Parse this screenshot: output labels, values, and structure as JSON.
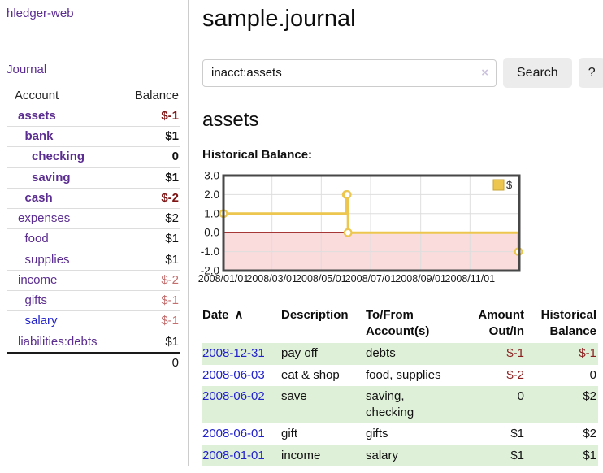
{
  "app": {
    "brand": "hledger-web",
    "nav_journal": "Journal"
  },
  "sidebar": {
    "col_account": "Account",
    "col_balance": "Balance",
    "accounts": [
      {
        "name": "assets",
        "depth": 0,
        "balance": "$-1",
        "bold": true,
        "neg": true
      },
      {
        "name": "bank",
        "depth": 1,
        "balance": "$1",
        "bold": true,
        "neg": false
      },
      {
        "name": "checking",
        "depth": 2,
        "balance": "0",
        "bold": true,
        "neg": false
      },
      {
        "name": "saving",
        "depth": 2,
        "balance": "$1",
        "bold": true,
        "neg": false
      },
      {
        "name": "cash",
        "depth": 1,
        "balance": "$-2",
        "bold": true,
        "neg": true
      },
      {
        "name": "expenses",
        "depth": 0,
        "balance": "$2",
        "bold": false,
        "neg": false
      },
      {
        "name": "food",
        "depth": 1,
        "balance": "$1",
        "bold": false,
        "neg": false
      },
      {
        "name": "supplies",
        "depth": 1,
        "balance": "$1",
        "bold": false,
        "neg": false
      },
      {
        "name": "income",
        "depth": 0,
        "balance": "$-2",
        "bold": false,
        "neg": true
      },
      {
        "name": "gifts",
        "depth": 1,
        "balance": "$-1",
        "bold": false,
        "neg": true
      },
      {
        "name": "salary",
        "depth": 1,
        "balance": "$-1",
        "bold": false,
        "neg": true,
        "blue": true
      },
      {
        "name": "liabilities:debts",
        "depth": 0,
        "balance": "$1",
        "bold": false,
        "neg": false
      }
    ],
    "total": "0"
  },
  "header": {
    "title": "sample.journal"
  },
  "search": {
    "value": "inacct:assets",
    "clear_icon": "×",
    "button": "Search",
    "help_button": "?"
  },
  "account_page": {
    "heading": "assets",
    "chart_label": "Historical Balance:"
  },
  "chart_data": {
    "type": "line",
    "title": "Historical Balance:",
    "style": "step-after",
    "series": [
      {
        "name": "$",
        "color": "#ecc64f",
        "points": [
          {
            "date": "2008-01-01",
            "value": 1
          },
          {
            "date": "2008-06-01",
            "value": 2
          },
          {
            "date": "2008-06-02",
            "value": 2
          },
          {
            "date": "2008-06-03",
            "value": 0
          },
          {
            "date": "2008-12-31",
            "value": -1
          }
        ]
      }
    ],
    "x_range": [
      "2008-01-01",
      "2009-01-01"
    ],
    "x_ticks": [
      "2008/01/01",
      "2008/03/01",
      "2008/05/01",
      "2008/07/01",
      "2008/09/01",
      "2008/11/01"
    ],
    "y_ticks": [
      3.0,
      2.0,
      1.0,
      0.0,
      -1.0,
      -2.0
    ],
    "ylim": [
      -2,
      3
    ],
    "grid": true,
    "negative_fill": "#fadcdc",
    "zero_line_color": "#8e0000",
    "legend": {
      "label": "$",
      "position": "top-right"
    }
  },
  "register": {
    "sort_icon": "∧",
    "columns": [
      "Date",
      "Description",
      "To/From Account(s)",
      "Amount Out/In",
      "Historical Balance"
    ],
    "rows": [
      {
        "date": "2008-12-31",
        "description": "pay off",
        "accounts": "debts",
        "amount": "$-1",
        "balance": "$-1",
        "amount_neg": true,
        "balance_neg": true
      },
      {
        "date": "2008-06-03",
        "description": "eat & shop",
        "accounts": "food, supplies",
        "amount": "$-2",
        "balance": "0",
        "amount_neg": true,
        "balance_neg": false
      },
      {
        "date": "2008-06-02",
        "description": "save",
        "accounts": "saving, checking",
        "amount": "0",
        "balance": "$2",
        "amount_neg": false,
        "balance_neg": false
      },
      {
        "date": "2008-06-01",
        "description": "gift",
        "accounts": "gifts",
        "amount": "$1",
        "balance": "$2",
        "amount_neg": false,
        "balance_neg": false
      },
      {
        "date": "2008-01-01",
        "description": "income",
        "accounts": "salary",
        "amount": "$1",
        "balance": "$1",
        "amount_neg": false,
        "balance_neg": false
      }
    ]
  }
}
